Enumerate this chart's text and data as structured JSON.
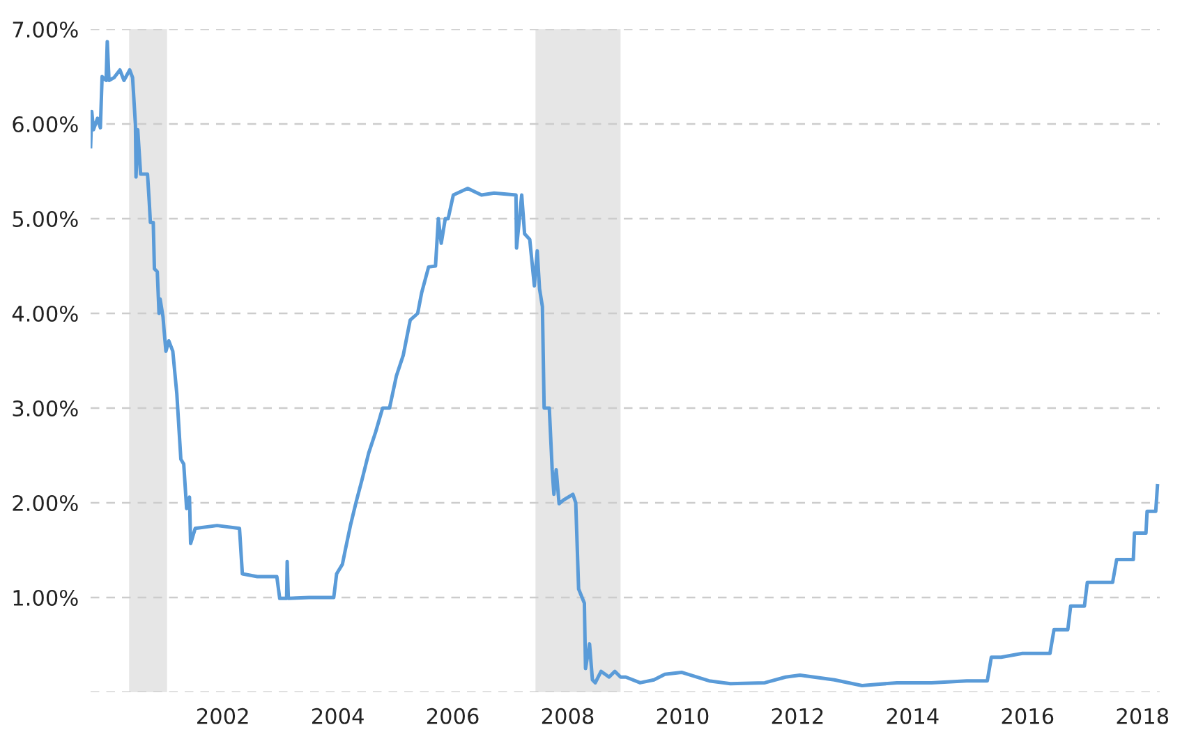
{
  "chart_data": {
    "type": "line",
    "x": [
      1999.7,
      1999.72,
      1999.75,
      1999.82,
      1999.87,
      1999.9,
      1999.97,
      1999.99,
      2000.02,
      2000.11,
      2000.21,
      2000.28,
      2000.38,
      2000.43,
      2000.48,
      2000.49,
      2000.52,
      2000.57,
      2000.69,
      2000.72,
      2000.74,
      2000.79,
      2000.81,
      2000.86,
      2000.89,
      2000.91,
      2000.96,
      2000.98,
      2001.01,
      2001.06,
      2001.13,
      2001.2,
      2001.27,
      2001.32,
      2001.37,
      2001.42,
      2001.44,
      2001.52,
      2001.9,
      2002.29,
      2002.34,
      2002.6,
      2002.94,
      2002.99,
      2003.11,
      2003.12,
      2003.14,
      2003.5,
      2003.93,
      2003.98,
      2004.08,
      2004.13,
      2004.22,
      2004.32,
      2004.42,
      2004.54,
      2004.66,
      2004.78,
      2004.9,
      2005.02,
      2005.14,
      2005.26,
      2005.39,
      2005.46,
      2005.58,
      2005.7,
      2005.75,
      2005.8,
      2005.87,
      2005.92,
      2006.01,
      2006.26,
      2006.5,
      2006.72,
      2007.1,
      2007.11,
      2007.2,
      2007.25,
      2007.34,
      2007.42,
      2007.47,
      2007.51,
      2007.56,
      2007.59,
      2007.68,
      2007.73,
      2007.76,
      2007.8,
      2007.85,
      2007.93,
      2008.09,
      2008.14,
      2008.19,
      2008.29,
      2008.31,
      2008.38,
      2008.43,
      2008.48,
      2008.58,
      2008.72,
      2008.82,
      2008.92,
      2009.01,
      2009.26,
      2009.5,
      2009.69,
      2009.98,
      2010.46,
      2010.83,
      2011.43,
      2011.79,
      2012.04,
      2012.64,
      2013.12,
      2013.73,
      2014.33,
      2014.94,
      2015.3,
      2015.37,
      2015.54,
      2015.91,
      2016.39,
      2016.46,
      2016.7,
      2016.75,
      2016.99,
      2017.04,
      2017.48,
      2017.55,
      2017.84,
      2017.86,
      2018.06,
      2018.08,
      2018.23,
      2018.26
    ],
    "series": [
      {
        "color": "#5a9bd8",
        "values": [
          5.76,
          6.13,
          5.94,
          6.06,
          5.96,
          6.5,
          6.46,
          6.87,
          6.46,
          6.49,
          6.57,
          6.46,
          6.57,
          6.49,
          5.99,
          5.44,
          5.94,
          5.47,
          5.47,
          5.18,
          4.96,
          4.96,
          4.47,
          4.44,
          4.0,
          4.15,
          3.96,
          3.81,
          3.6,
          3.71,
          3.6,
          3.15,
          2.46,
          2.41,
          1.94,
          2.06,
          1.57,
          1.73,
          1.76,
          1.73,
          1.25,
          1.22,
          1.22,
          0.99,
          0.99,
          1.38,
          0.99,
          1.0,
          1.0,
          1.25,
          1.35,
          1.5,
          1.76,
          2.01,
          2.24,
          2.53,
          2.75,
          3.0,
          3.0,
          3.34,
          3.56,
          3.93,
          4.0,
          4.22,
          4.49,
          4.5,
          5.0,
          4.74,
          5.0,
          5.0,
          5.25,
          5.32,
          5.25,
          5.27,
          5.25,
          4.69,
          5.25,
          4.84,
          4.78,
          4.29,
          4.66,
          4.26,
          4.07,
          3.0,
          3.0,
          2.35,
          2.09,
          2.35,
          1.99,
          2.03,
          2.09,
          2.0,
          1.09,
          0.94,
          0.25,
          0.51,
          0.13,
          0.1,
          0.22,
          0.16,
          0.22,
          0.16,
          0.16,
          0.1,
          0.13,
          0.19,
          0.21,
          0.12,
          0.09,
          0.1,
          0.16,
          0.18,
          0.13,
          0.07,
          0.1,
          0.1,
          0.12,
          0.12,
          0.37,
          0.37,
          0.41,
          0.41,
          0.66,
          0.66,
          0.91,
          0.91,
          1.16,
          1.16,
          1.4,
          1.4,
          1.68,
          1.68,
          1.91,
          1.91,
          2.18
        ]
      }
    ],
    "xlim": [
      1999.7,
      2018.3
    ],
    "xticks": [
      2002,
      2004,
      2006,
      2008,
      2010,
      2012,
      2014,
      2016,
      2018
    ],
    "ylim": [
      0,
      7
    ],
    "yticks": [
      {
        "value": 0,
        "label": null
      },
      {
        "value": 1,
        "label": "1.00%"
      },
      {
        "value": 2,
        "label": "2.00%"
      },
      {
        "value": 3,
        "label": "3.00%"
      },
      {
        "value": 4,
        "label": "4.00%"
      },
      {
        "value": 5,
        "label": "5.00%"
      },
      {
        "value": 6,
        "label": "6.00%"
      },
      {
        "value": 7,
        "label": "7.00%"
      }
    ],
    "bands": [
      {
        "axis": "x",
        "from": 2000.37,
        "to": 2001.03,
        "color": "#e6e6e6"
      },
      {
        "axis": "x",
        "from": 2007.44,
        "to": 2008.92,
        "color": "#e6e6e6"
      }
    ],
    "grid": "y",
    "line_style": "solid"
  }
}
